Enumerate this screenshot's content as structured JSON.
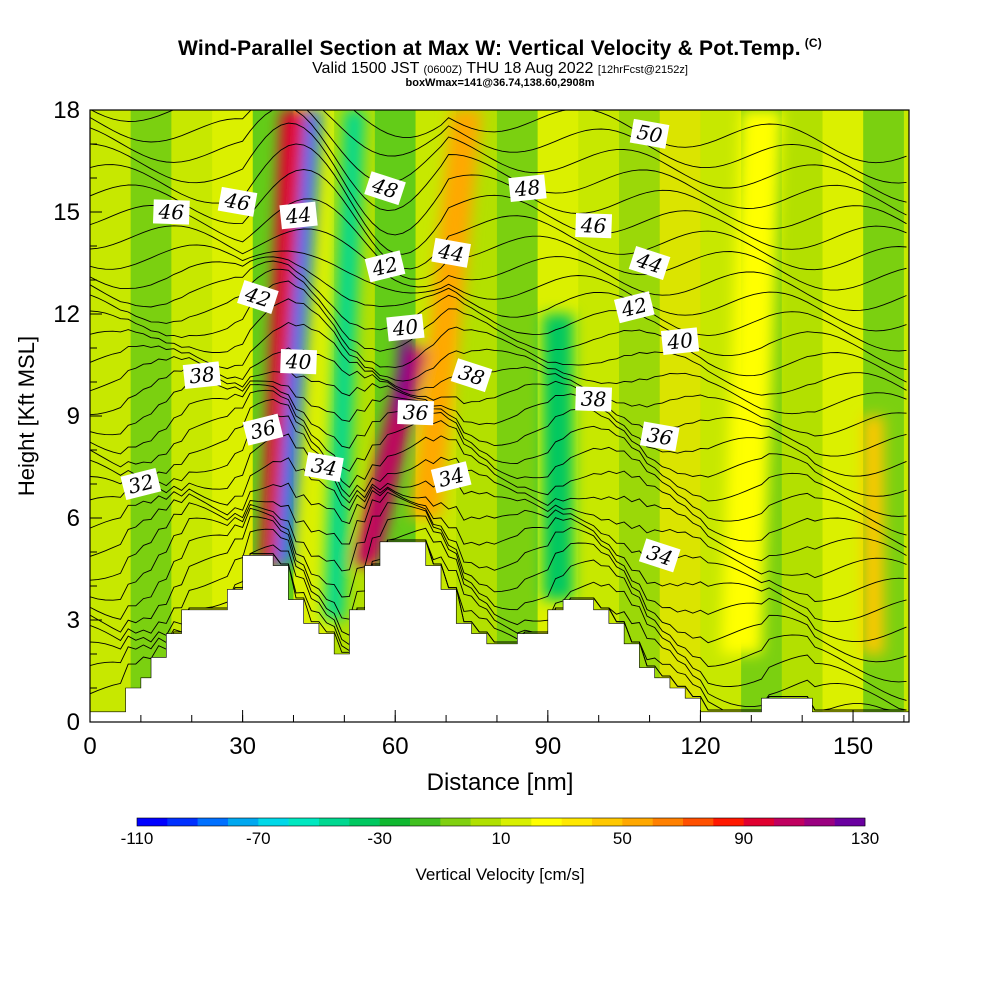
{
  "title": "Wind-Parallel Section at Max W: Vertical Velocity & Pot.Temp.",
  "title_mark": "(C)",
  "subtitle": {
    "main_a": "Valid 1500 JST ",
    "small_a": "(0600Z)",
    "main_b": " THU 18 Aug 2022 ",
    "small_b": "[12hrFcst@2152z]"
  },
  "subsubtitle": "boxWmax=141@36.74,138.60,2908m",
  "chart_data": {
    "type": "heatmap",
    "xlabel": "Distance [nm]",
    "ylabel": "Height [Kft MSL]",
    "xlim": [
      0,
      161
    ],
    "ylim": [
      0,
      18
    ],
    "xticks": [
      "0",
      "30",
      "60",
      "90",
      "120",
      "150"
    ],
    "yticks": [
      "0",
      "3",
      "6",
      "9",
      "12",
      "15",
      "18"
    ],
    "colorbar": {
      "label": "Vertical Velocity [cm/s]",
      "range": [
        -110,
        130
      ],
      "step": 10,
      "tick_labels": [
        "-110",
        "-70",
        "-30",
        "10",
        "50",
        "90",
        "130"
      ],
      "colors": [
        "#0000ff",
        "#0030ff",
        "#0070ff",
        "#00a8f0",
        "#00d8e8",
        "#00e8c0",
        "#00d890",
        "#00c860",
        "#10b830",
        "#40c020",
        "#80d010",
        "#b0e000",
        "#d8f000",
        "#ffff00",
        "#ffe800",
        "#ffc800",
        "#ffa800",
        "#ff8000",
        "#ff5000",
        "#ff1800",
        "#e00030",
        "#c00060",
        "#9a0080",
        "#6a00a0"
      ]
    },
    "terrain_profile": [
      [
        0,
        0.3
      ],
      [
        7,
        0.3
      ],
      [
        7,
        1
      ],
      [
        10,
        1
      ],
      [
        10,
        1.3
      ],
      [
        12,
        1.3
      ],
      [
        12,
        1.9
      ],
      [
        15,
        1.9
      ],
      [
        15,
        2.6
      ],
      [
        18,
        2.6
      ],
      [
        18,
        3.3
      ],
      [
        27,
        3.3
      ],
      [
        27,
        3.9
      ],
      [
        30,
        3.9
      ],
      [
        30,
        4.9
      ],
      [
        36,
        4.9
      ],
      [
        36,
        4.6
      ],
      [
        39,
        4.6
      ],
      [
        39,
        3.6
      ],
      [
        42,
        3.6
      ],
      [
        42,
        2.9
      ],
      [
        45,
        2.9
      ],
      [
        45,
        2.6
      ],
      [
        48,
        2.6
      ],
      [
        48,
        2
      ],
      [
        51,
        2
      ],
      [
        51,
        3.3
      ],
      [
        54,
        3.3
      ],
      [
        54,
        4.6
      ],
      [
        57,
        4.6
      ],
      [
        57,
        5.3
      ],
      [
        66,
        5.3
      ],
      [
        66,
        4.6
      ],
      [
        69,
        4.6
      ],
      [
        69,
        3.9
      ],
      [
        72,
        3.9
      ],
      [
        72,
        2.9
      ],
      [
        75,
        2.9
      ],
      [
        75,
        2.6
      ],
      [
        78,
        2.6
      ],
      [
        78,
        2.3
      ],
      [
        84,
        2.3
      ],
      [
        84,
        2.6
      ],
      [
        90,
        2.6
      ],
      [
        90,
        3.3
      ],
      [
        93,
        3.3
      ],
      [
        93,
        3.6
      ],
      [
        99,
        3.6
      ],
      [
        99,
        3.3
      ],
      [
        102,
        3.3
      ],
      [
        102,
        2.9
      ],
      [
        105,
        2.9
      ],
      [
        105,
        2.3
      ],
      [
        108,
        2.3
      ],
      [
        108,
        1.6
      ],
      [
        111,
        1.6
      ],
      [
        111,
        1.3
      ],
      [
        114,
        1.3
      ],
      [
        114,
        1
      ],
      [
        117,
        1
      ],
      [
        117,
        0.7
      ],
      [
        120,
        0.7
      ],
      [
        120,
        0.3
      ],
      [
        132,
        0.3
      ],
      [
        132,
        0.7
      ],
      [
        142,
        0.7
      ],
      [
        142,
        0.3
      ],
      [
        161,
        0.3
      ]
    ],
    "velocity_features": [
      {
        "x0": 36,
        "y0": 4.6,
        "x1": 40,
        "y1": 18,
        "w": 2.5,
        "value": 90
      },
      {
        "x0": 38,
        "y0": 4.6,
        "x1": 44,
        "y1": 18,
        "w": 1.5,
        "value": -90
      },
      {
        "x0": 54,
        "y0": 4.6,
        "x1": 64,
        "y1": 11,
        "w": 2.5,
        "value": 100
      },
      {
        "x0": 61,
        "y0": 9,
        "x1": 62,
        "y1": 11.5,
        "w": 1,
        "value": 130
      },
      {
        "x0": 48,
        "y0": 3,
        "x1": 52,
        "y1": 18,
        "w": 2,
        "value": -50
      },
      {
        "x0": 66,
        "y0": 6,
        "x1": 74,
        "y1": 18,
        "w": 3,
        "value": 50
      },
      {
        "x0": 92,
        "y0": 3.6,
        "x1": 92,
        "y1": 12,
        "w": 3,
        "value": -35
      },
      {
        "x0": 128,
        "y0": 2,
        "x1": 132,
        "y1": 18,
        "w": 4,
        "value": 20
      },
      {
        "x0": 154,
        "y0": 2,
        "x1": 154,
        "y1": 9,
        "w": 2,
        "value": 40
      }
    ],
    "isotherm_labels": [
      {
        "text": "32",
        "x": 10,
        "y": 7.0
      },
      {
        "text": "38",
        "x": 22,
        "y": 10.2
      },
      {
        "text": "46",
        "x": 16,
        "y": 15.0
      },
      {
        "text": "46",
        "x": 29,
        "y": 15.3
      },
      {
        "text": "42",
        "x": 33,
        "y": 12.5
      },
      {
        "text": "36",
        "x": 34,
        "y": 8.6
      },
      {
        "text": "44",
        "x": 41,
        "y": 14.9
      },
      {
        "text": "40",
        "x": 41,
        "y": 10.6
      },
      {
        "text": "34",
        "x": 46,
        "y": 7.5
      },
      {
        "text": "48",
        "x": 58,
        "y": 15.7
      },
      {
        "text": "42",
        "x": 58,
        "y": 13.4
      },
      {
        "text": "40",
        "x": 62,
        "y": 11.6
      },
      {
        "text": "36",
        "x": 64,
        "y": 9.1
      },
      {
        "text": "44",
        "x": 71,
        "y": 13.8
      },
      {
        "text": "38",
        "x": 75,
        "y": 10.2
      },
      {
        "text": "34",
        "x": 71,
        "y": 7.2
      },
      {
        "text": "48",
        "x": 86,
        "y": 15.7
      },
      {
        "text": "46",
        "x": 99,
        "y": 14.6
      },
      {
        "text": "50",
        "x": 110,
        "y": 17.3
      },
      {
        "text": "44",
        "x": 110,
        "y": 13.5
      },
      {
        "text": "42",
        "x": 107,
        "y": 12.2
      },
      {
        "text": "40",
        "x": 116,
        "y": 11.2
      },
      {
        "text": "38",
        "x": 99,
        "y": 9.5
      },
      {
        "text": "36",
        "x": 112,
        "y": 8.4
      },
      {
        "text": "34",
        "x": 112,
        "y": 4.9
      }
    ]
  }
}
